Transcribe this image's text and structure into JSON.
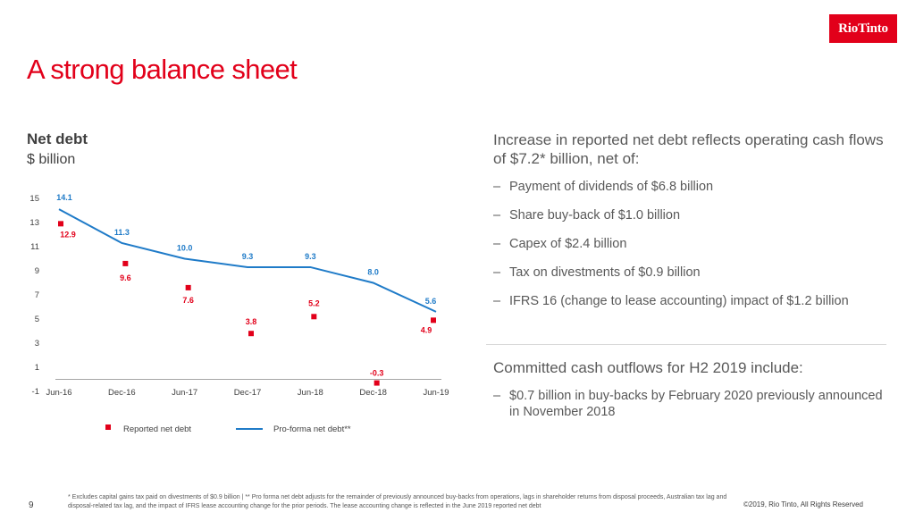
{
  "brand": {
    "logo_text": "RioTinto",
    "accent_color": "#e2001a"
  },
  "page": {
    "title": "A strong balance sheet",
    "number": "9",
    "footnote": "* Excludes capital gains tax paid on divestments of $0.9 billion  |  ** Pro forma net debt adjusts for the remainder of previously announced buy-backs from operations, lags in shareholder returns from disposal proceeds, Australian tax lag and disposal-related tax lag, and the impact of IFRS lease accounting change for the prior periods. The lease accounting change is reflected in the June 2019 reported net debt",
    "copyright": "©2019, Rio Tinto, All Rights Reserved"
  },
  "chart_header": {
    "title": "Net debt",
    "subtitle": "$ billion"
  },
  "chart_data": {
    "type": "line",
    "categories": [
      "Jun-16",
      "Dec-16",
      "Jun-17",
      "Dec-17",
      "Jun-18",
      "Dec-18",
      "Jun-19"
    ],
    "series": [
      {
        "name": "Reported net debt",
        "style": "scatter",
        "color": "#e2001a",
        "values": [
          12.9,
          9.6,
          7.6,
          3.8,
          5.2,
          -0.3,
          4.9
        ],
        "labels": [
          "12.9",
          "9.6",
          "7.6",
          "3.8",
          "5.2",
          "-0.3",
          "4.9"
        ]
      },
      {
        "name": "Pro-forma net debt**",
        "style": "line",
        "color": "#1f7bc8",
        "values": [
          14.1,
          11.3,
          10.0,
          9.3,
          9.3,
          8.0,
          5.6
        ],
        "labels": [
          "14.1",
          "11.3",
          "10.0",
          "9.3",
          "9.3",
          "8.0",
          "5.6"
        ]
      }
    ],
    "yticks": [
      -1,
      1,
      3,
      5,
      7,
      9,
      11,
      13,
      15
    ],
    "ylim": [
      -1,
      15
    ],
    "grid": false,
    "legend_position": "bottom"
  },
  "panel": {
    "heading": "Increase in reported net debt reflects operating cash flows of $7.2* billion, net of:",
    "bullets": [
      "Payment of dividends of $6.8 billion",
      "Share buy-back of $1.0 billion",
      "Capex of $2.4 billion",
      "Tax on divestments of $0.9 billion",
      "IFRS 16 (change to lease accounting) impact of $1.2 billion"
    ],
    "heading2": "Committed cash outflows for H2 2019 include:",
    "bullets2": [
      "$0.7 billion in buy-backs by February 2020 previously announced in November 2018"
    ]
  }
}
